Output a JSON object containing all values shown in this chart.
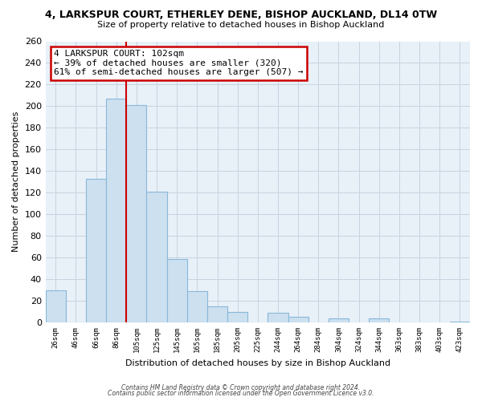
{
  "title": "4, LARKSPUR COURT, ETHERLEY DENE, BISHOP AUCKLAND, DL14 0TW",
  "subtitle": "Size of property relative to detached houses in Bishop Auckland",
  "xlabel": "Distribution of detached houses by size in Bishop Auckland",
  "ylabel": "Number of detached properties",
  "bar_labels": [
    "26sqm",
    "46sqm",
    "66sqm",
    "86sqm",
    "105sqm",
    "125sqm",
    "145sqm",
    "165sqm",
    "185sqm",
    "205sqm",
    "225sqm",
    "244sqm",
    "264sqm",
    "284sqm",
    "304sqm",
    "324sqm",
    "344sqm",
    "363sqm",
    "383sqm",
    "403sqm",
    "423sqm"
  ],
  "bar_heights": [
    30,
    0,
    133,
    207,
    201,
    121,
    59,
    29,
    15,
    10,
    0,
    9,
    5,
    0,
    4,
    0,
    4,
    0,
    0,
    0,
    1
  ],
  "bar_color": "#cce0f0",
  "bar_edge_color": "#89b8d8",
  "vline_x": 3.5,
  "vline_color": "#cc0000",
  "annotation_text": "4 LARKSPUR COURT: 102sqm\n← 39% of detached houses are smaller (320)\n61% of semi-detached houses are larger (507) →",
  "annotation_box_color": "#ffffff",
  "annotation_box_edge": "#cc0000",
  "ylim": [
    0,
    260
  ],
  "yticks": [
    0,
    20,
    40,
    60,
    80,
    100,
    120,
    140,
    160,
    180,
    200,
    220,
    240,
    260
  ],
  "footnote1": "Contains HM Land Registry data © Crown copyright and database right 2024.",
  "footnote2": "Contains public sector information licensed under the Open Government Licence v3.0.",
  "background_color": "#ffffff",
  "plot_bg_color": "#e8f0f8",
  "grid_color": "#c8d4e0"
}
